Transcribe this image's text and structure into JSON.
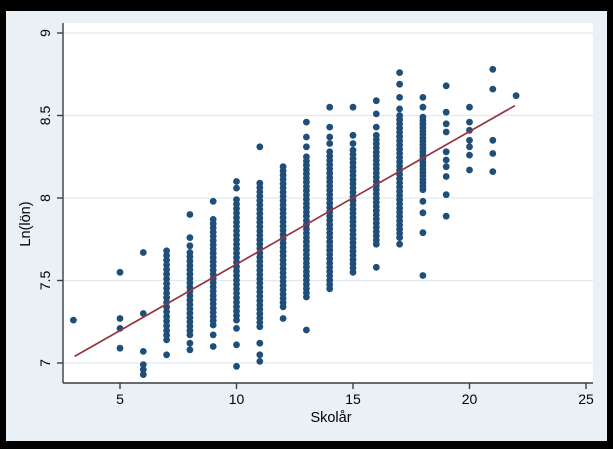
{
  "figure": {
    "kind": "stata-style scatter plot with linear fit",
    "colors": {
      "frame": "#000000",
      "panel_background": "#eaf1f6",
      "plot_background": "#ffffff",
      "gridline": "#dfeaf2",
      "axis": "#3c3c3c",
      "marker": "#1f4e79",
      "fit_line": "#953542",
      "text": "#000000"
    }
  },
  "chart_data": {
    "type": "scatter",
    "title": "",
    "xlabel": "Skolår",
    "ylabel": "Ln(lön)",
    "x_ticks": [
      5,
      10,
      15,
      20,
      25
    ],
    "x_tick_labels": [
      "5",
      "10",
      "15",
      "20",
      "25"
    ],
    "y_ticks": [
      7,
      7.5,
      8,
      8.5,
      9
    ],
    "y_tick_labels": [
      "7",
      "7.5",
      "8",
      "8.5",
      "9"
    ],
    "xlim": [
      2.6,
      25.3
    ],
    "ylim": [
      6.89,
      9.06
    ],
    "grid": "horizontal gridlines at y ticks only",
    "legend": "none",
    "series": [
      {
        "name": "observations",
        "type": "scatter",
        "marker": "filled-circle",
        "columns_encoding": "x = Skolår; dense = [ymin, ymax, count] evenly filled vertical run of points; extras = individual Ln(lön) values",
        "columns": [
          {
            "x": 3,
            "extras": [
              7.26
            ]
          },
          {
            "x": 5,
            "extras": [
              7.55,
              7.27,
              7.21,
              7.09
            ]
          },
          {
            "x": 6,
            "extras": [
              7.67,
              7.3,
              7.07,
              6.99,
              6.96,
              6.93
            ]
          },
          {
            "x": 7,
            "dense": [
              7.14,
              7.68,
              20
            ],
            "extras": [
              7.05
            ]
          },
          {
            "x": 8,
            "dense": [
              7.17,
              7.67,
              20
            ],
            "extras": [
              7.9,
              7.76,
              7.71,
              7.12,
              7.08
            ]
          },
          {
            "x": 9,
            "dense": [
              7.23,
              7.87,
              26
            ],
            "extras": [
              7.98,
              7.17,
              7.1
            ]
          },
          {
            "x": 10,
            "dense": [
              7.26,
              7.99,
              28
            ],
            "extras": [
              8.1,
              8.06,
              7.21,
              7.11,
              6.98
            ]
          },
          {
            "x": 11,
            "dense": [
              7.22,
              8.09,
              34
            ],
            "extras": [
              8.31,
              7.12,
              7.05,
              7.01
            ]
          },
          {
            "x": 12,
            "dense": [
              7.34,
              8.19,
              34
            ],
            "extras": [
              7.27
            ]
          },
          {
            "x": 13,
            "dense": [
              7.4,
              8.25,
              34
            ],
            "extras": [
              8.46,
              8.37,
              8.31,
              7.2
            ]
          },
          {
            "x": 14,
            "dense": [
              7.45,
              8.28,
              33
            ],
            "extras": [
              8.55,
              8.43,
              8.37,
              8.33
            ]
          },
          {
            "x": 15,
            "dense": [
              7.55,
              8.29,
              30
            ],
            "extras": [
              8.55,
              8.38,
              8.33
            ]
          },
          {
            "x": 16,
            "dense": [
              7.72,
              8.38,
              27
            ],
            "extras": [
              8.59,
              8.51,
              8.43,
              7.58
            ]
          },
          {
            "x": 17,
            "dense": [
              7.76,
              8.5,
              30
            ],
            "extras": [
              8.76,
              8.69,
              8.61,
              8.54,
              7.72
            ]
          },
          {
            "x": 18,
            "dense": [
              8.05,
              8.49,
              22
            ],
            "extras": [
              8.61,
              8.55,
              7.98,
              7.91,
              7.79,
              7.53
            ]
          },
          {
            "x": 19,
            "extras": [
              8.68,
              8.52,
              8.45,
              8.4,
              8.28,
              8.23,
              8.19,
              8.13,
              8.02,
              7.89
            ]
          },
          {
            "x": 20,
            "extras": [
              8.55,
              8.46,
              8.41,
              8.35,
              8.31,
              8.26,
              8.17
            ]
          },
          {
            "x": 21,
            "extras": [
              8.78,
              8.66,
              8.35,
              8.27,
              8.16
            ]
          },
          {
            "x": 22,
            "extras": [
              8.62
            ]
          }
        ]
      },
      {
        "name": "linear-fit",
        "type": "line",
        "x": [
          3.05,
          21.95
        ],
        "y": [
          7.04,
          8.56
        ]
      }
    ]
  }
}
